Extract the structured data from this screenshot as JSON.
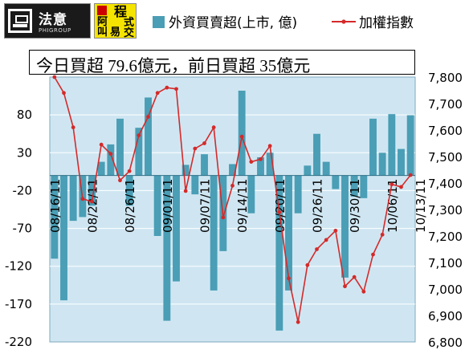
{
  "logos": {
    "brand_main": "法意",
    "brand_sub": "PHIGROUP",
    "brand2_chars": [
      "阿",
      "程",
      "叫",
      "式",
      "易",
      "交"
    ]
  },
  "headline": "今日買超 79.6億元，前日買超 35億元",
  "chart_data": {
    "type": "bar+line",
    "legend": {
      "placement": "top",
      "bar_label": "外資買賣超(上市, 億)",
      "line_label": "加權指數"
    },
    "colors": {
      "bar": "#4a9eb5",
      "line": "#d42a2a",
      "plot_bg": "#cfe6f2",
      "grid": "#ffffff"
    },
    "left_axis": {
      "min": -220,
      "max": 130,
      "ticks": [
        80,
        30,
        -20,
        -70,
        -120,
        -170,
        -220
      ]
    },
    "right_axis": {
      "min": 6800,
      "max": 7800,
      "ticks": [
        "7,800",
        "7,700",
        "7,600",
        "7,500",
        "7,400",
        "7,300",
        "7,200",
        "7,100",
        "7,000",
        "6,900",
        "6,800"
      ],
      "tick_values": [
        7800,
        7700,
        7600,
        7500,
        7400,
        7300,
        7200,
        7100,
        7000,
        6900,
        6800
      ]
    },
    "date_labels": [
      {
        "index": 0,
        "text": "08/16/11"
      },
      {
        "index": 4,
        "text": "08/22/11"
      },
      {
        "index": 8,
        "text": "08/26/11"
      },
      {
        "index": 12,
        "text": "09/01/11"
      },
      {
        "index": 16,
        "text": "09/07/11"
      },
      {
        "index": 20,
        "text": "09/14/11"
      },
      {
        "index": 24,
        "text": "09/20/11"
      },
      {
        "index": 28,
        "text": "09/26/11"
      },
      {
        "index": 32,
        "text": "09/30/11"
      },
      {
        "index": 36,
        "text": "10/06/11"
      },
      {
        "index": 39,
        "text": "10/13/11"
      }
    ],
    "bars": [
      -110,
      -165,
      -60,
      -55,
      -40,
      18,
      41,
      75,
      -40,
      63,
      103,
      -80,
      -192,
      -140,
      14,
      -25,
      28,
      -152,
      -100,
      15,
      112,
      -50,
      24,
      30,
      -205,
      -152,
      -50,
      13,
      55,
      18,
      -18,
      -135,
      -28,
      -30,
      75,
      30,
      81,
      35,
      79.6
    ],
    "index": [
      7800,
      7740,
      7610,
      7340,
      7330,
      7545,
      7510,
      7410,
      7445,
      7580,
      7650,
      7740,
      7760,
      7755,
      7370,
      7530,
      7550,
      7610,
      7270,
      7390,
      7575,
      7480,
      7490,
      7540,
      7290,
      7040,
      6875,
      7090,
      7150,
      7185,
      7220,
      7010,
      7045,
      6990,
      7130,
      7205,
      7395,
      7385,
      7430
    ]
  }
}
